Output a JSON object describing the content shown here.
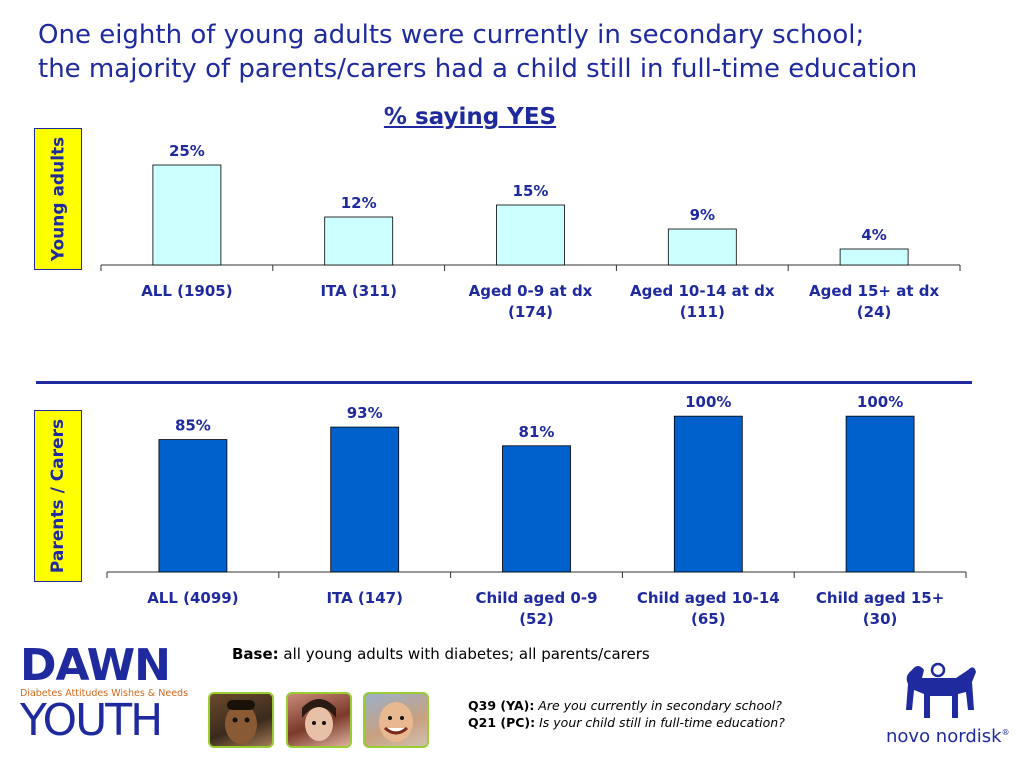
{
  "title_line1": "One eighth of young adults were currently in secondary school;",
  "title_line2": "the majority of parents/carers had a child still in full-time education",
  "subtitle": "% saying YES",
  "colors": {
    "accent": "#1f2a9e",
    "ya_bar": "#ccffff",
    "pc_bar": "#0060cc",
    "label_bg": "#ffff00"
  },
  "chart_data": [
    {
      "type": "bar",
      "side_label": "Young adults",
      "categories": [
        [
          "ALL (1905)"
        ],
        [
          "ITA (311)"
        ],
        [
          "Aged 0-9 at dx",
          "(174)"
        ],
        [
          "Aged 10-14 at dx",
          "(111)"
        ],
        [
          "Aged 15+ at dx",
          "(24)"
        ]
      ],
      "values": [
        25,
        12,
        15,
        9,
        4
      ],
      "data_labels": [
        "25%",
        "12%",
        "15%",
        "9%",
        "4%"
      ],
      "ylim": [
        0,
        30
      ]
    },
    {
      "type": "bar",
      "side_label": "Parents / Carers",
      "categories": [
        [
          "ALL (4099)"
        ],
        [
          "ITA (147)"
        ],
        [
          "Child aged 0-9",
          "(52)"
        ],
        [
          "Child aged 10-14",
          "(65)"
        ],
        [
          "Child aged 15+",
          "(30)"
        ]
      ],
      "values": [
        85,
        93,
        81,
        100,
        100
      ],
      "data_labels": [
        "85%",
        "93%",
        "81%",
        "100%",
        "100%"
      ],
      "ylim": [
        0,
        120
      ]
    }
  ],
  "base_label": "Base:",
  "base_text": " all young adults with diabetes; all parents/carers",
  "q1_label": "Q39 (YA):",
  "q1_text": " Are you currently in secondary school?",
  "q2_label": "Q21 (PC):",
  "q2_text": " Is your child still in full-time education?",
  "logo": {
    "dawn": "DAWN",
    "tagline": "Diabetes Attitudes Wishes & Needs",
    "youth": "YOUTH"
  },
  "brand": "novo nordisk",
  "brand_mark": "®"
}
